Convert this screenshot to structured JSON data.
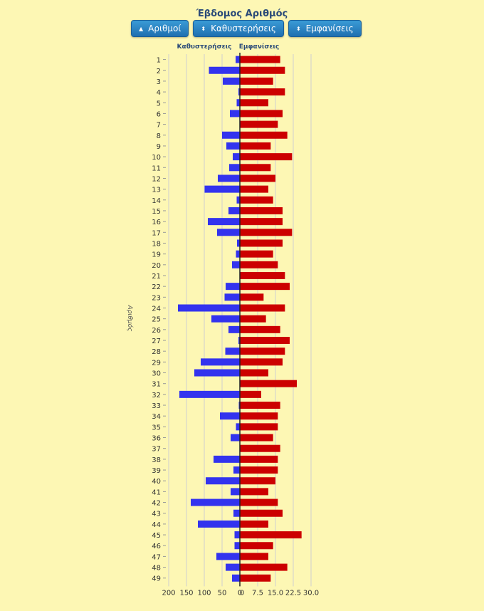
{
  "title": "Έβδομος Αριθμός",
  "buttons": [
    {
      "label": "Αριθμοί",
      "icon": "sort-asc-icon"
    },
    {
      "label": "Καθυστερήσεις",
      "icon": "sort-icon"
    },
    {
      "label": "Εμφανίσεις",
      "icon": "sort-icon"
    }
  ],
  "chart_data": {
    "type": "bar",
    "orientation": "horizontal-back-to-back",
    "left_header": "Καθυστερήσεις",
    "right_header": "Εμφανίσεις",
    "ylabel": "Αριθμός",
    "categories": [
      "1",
      "2",
      "3",
      "4",
      "5",
      "6",
      "7",
      "8",
      "9",
      "10",
      "11",
      "12",
      "13",
      "14",
      "15",
      "16",
      "17",
      "18",
      "19",
      "20",
      "21",
      "22",
      "23",
      "24",
      "25",
      "26",
      "27",
      "28",
      "29",
      "30",
      "31",
      "32",
      "33",
      "34",
      "35",
      "36",
      "37",
      "38",
      "39",
      "40",
      "41",
      "42",
      "43",
      "44",
      "45",
      "46",
      "47",
      "48",
      "49"
    ],
    "series": [
      {
        "name": "Καθυστερήσεις",
        "color": "#3333ee",
        "xlim": [
          200,
          0
        ],
        "ticks": [
          "200",
          "150",
          "100",
          "50",
          "0"
        ],
        "values": [
          12,
          87,
          48,
          4,
          9,
          28,
          0,
          50,
          38,
          20,
          30,
          62,
          99,
          9,
          32,
          90,
          64,
          8,
          11,
          22,
          0,
          40,
          43,
          174,
          80,
          32,
          4,
          41,
          110,
          128,
          1,
          170,
          3,
          56,
          11,
          26,
          1,
          74,
          18,
          96,
          26,
          138,
          18,
          118,
          15,
          15,
          66,
          40,
          22
        ]
      },
      {
        "name": "Εμφανίσεις",
        "color": "#cc0000",
        "xlim": [
          0,
          30
        ],
        "ticks": [
          "0",
          "7.5",
          "15.0",
          "22.5",
          "30.0"
        ],
        "values": [
          17,
          19,
          14,
          19,
          12,
          18,
          16,
          20,
          13,
          22,
          13,
          15,
          12,
          14,
          18,
          18,
          22,
          18,
          14,
          16,
          19,
          21,
          10,
          19,
          11,
          17,
          21,
          19,
          18,
          12,
          24,
          9,
          17,
          16,
          16,
          14,
          17,
          16,
          16,
          15,
          12,
          16,
          18,
          12,
          26,
          14,
          12,
          20,
          13
        ]
      }
    ],
    "grid": true
  }
}
